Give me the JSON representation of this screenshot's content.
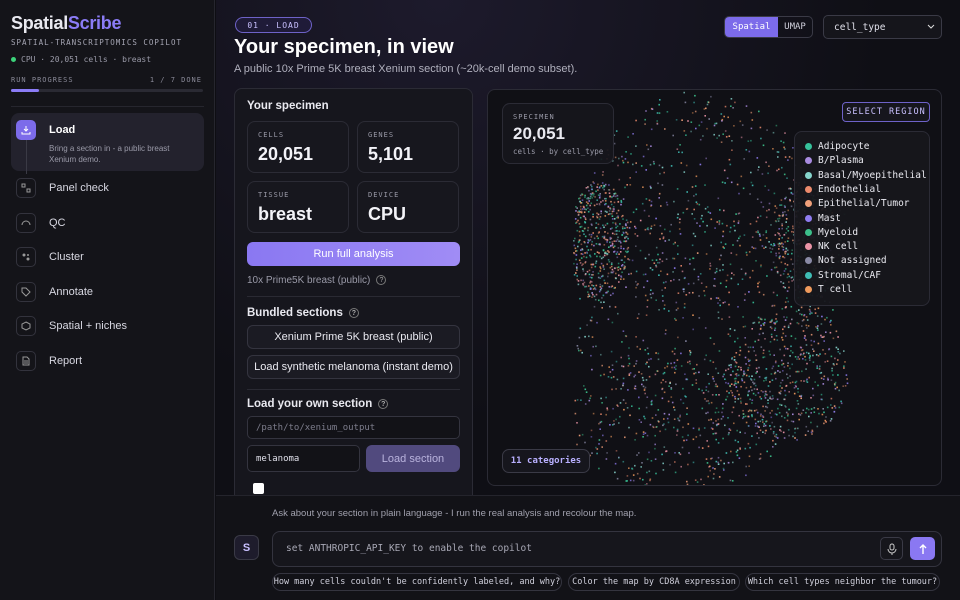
{
  "sidebar": {
    "brand": {
      "part1": "Spatial",
      "part2": "Scribe"
    },
    "tagline": "SPATIAL-TRANSCRIPTOMICS COPILOT",
    "status": "CPU · 20,051 cells · breast",
    "progress": {
      "label": "RUN PROGRESS",
      "count": "1 / 7 DONE"
    },
    "steps": [
      {
        "label": "Load",
        "description": "Bring a section in - a public breast Xenium demo."
      },
      {
        "label": "Panel check"
      },
      {
        "label": "QC"
      },
      {
        "label": "Cluster"
      },
      {
        "label": "Annotate"
      },
      {
        "label": "Spatial + niches"
      },
      {
        "label": "Report"
      }
    ]
  },
  "header": {
    "step_badge": "01 · LOAD",
    "title": "Your specimen, in view",
    "subtitle": "A public 10x Prime 5K breast Xenium section (~20k-cell demo subset).",
    "view_toggle": [
      "Spatial",
      "UMAP"
    ],
    "color_by": "cell_type"
  },
  "specimen_panel": {
    "title": "Your specimen",
    "stats": [
      {
        "label": "CELLS",
        "value": "20,051"
      },
      {
        "label": "GENES",
        "value": "5,101"
      },
      {
        "label": "TISSUE",
        "value": "breast"
      },
      {
        "label": "DEVICE",
        "value": "CPU"
      }
    ],
    "run_button": "Run full analysis",
    "dataset_note": "10x Prime5K breast (public)",
    "bundled": {
      "title": "Bundled sections",
      "buttons": [
        "Xenium Prime 5K breast (public)",
        "Load synthetic melanoma (instant demo)"
      ]
    },
    "own": {
      "title": "Load your own section",
      "path_placeholder": "/path/to/xenium_output",
      "name_value": "melanoma",
      "load_button": "Load section"
    }
  },
  "map": {
    "card": {
      "label": "SPECIMEN",
      "value": "20,051",
      "caption": "cells · by cell_type"
    },
    "select_region": "SELECT REGION",
    "legend": [
      {
        "name": "Adipocyte",
        "color": "#36c29b"
      },
      {
        "name": "B/Plasma",
        "color": "#a98be0"
      },
      {
        "name": "Basal/Myoepithelial",
        "color": "#86d4cc"
      },
      {
        "name": "Endothelial",
        "color": "#ec8a6c"
      },
      {
        "name": "Epithelial/Tumor",
        "color": "#f0a07a"
      },
      {
        "name": "Mast",
        "color": "#8f7cf0"
      },
      {
        "name": "Myeloid",
        "color": "#3cbf8a"
      },
      {
        "name": "NK cell",
        "color": "#ea93a6"
      },
      {
        "name": "Not assigned",
        "color": "#8a8aa6"
      },
      {
        "name": "Stromal/CAF",
        "color": "#3fbdb5"
      },
      {
        "name": "T cell",
        "color": "#ef9a5c"
      }
    ],
    "categories_badge": "11 categories"
  },
  "chat": {
    "hint": "Ask about your section in plain language - I run the real analysis and recolour the map.",
    "avatar": "S",
    "placeholder": "set ANTHROPIC_API_KEY to enable the copilot",
    "suggestions": [
      "How many cells couldn't be confidently labeled, and why?",
      "Color the map by CD8A expression",
      "Which cell types neighbor the tumour?"
    ]
  }
}
